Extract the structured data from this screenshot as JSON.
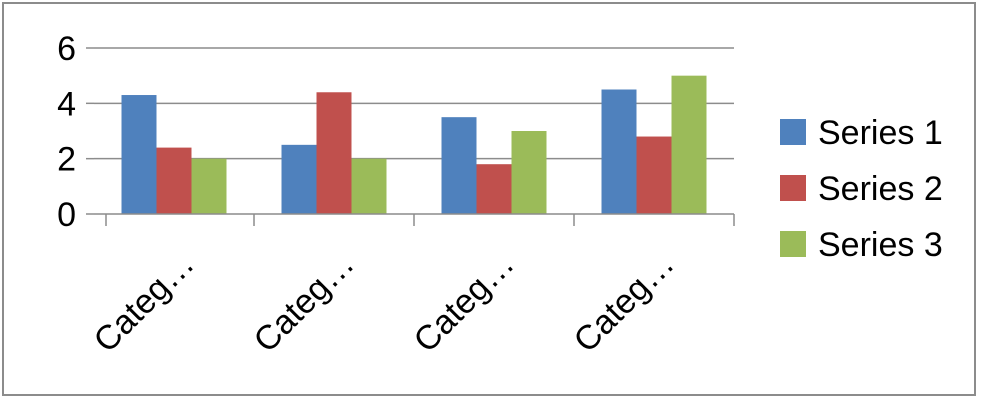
{
  "chart_data": {
    "type": "bar",
    "categories": [
      "Categ…",
      "Categ…",
      "Categ…",
      "Categ…"
    ],
    "series": [
      {
        "name": "Series 1",
        "values": [
          4.3,
          2.5,
          3.5,
          4.5
        ],
        "color": "#4F81BD"
      },
      {
        "name": "Series 2",
        "values": [
          2.4,
          4.4,
          1.8,
          2.8
        ],
        "color": "#C0504D"
      },
      {
        "name": "Series 3",
        "values": [
          2,
          2,
          3,
          5
        ],
        "color": "#9BBB59"
      }
    ],
    "title": "",
    "xlabel": "",
    "ylabel": "",
    "ylim": [
      0,
      6
    ],
    "yticks": [
      0,
      2,
      4,
      6
    ],
    "grid": true,
    "legend_position": "right"
  }
}
